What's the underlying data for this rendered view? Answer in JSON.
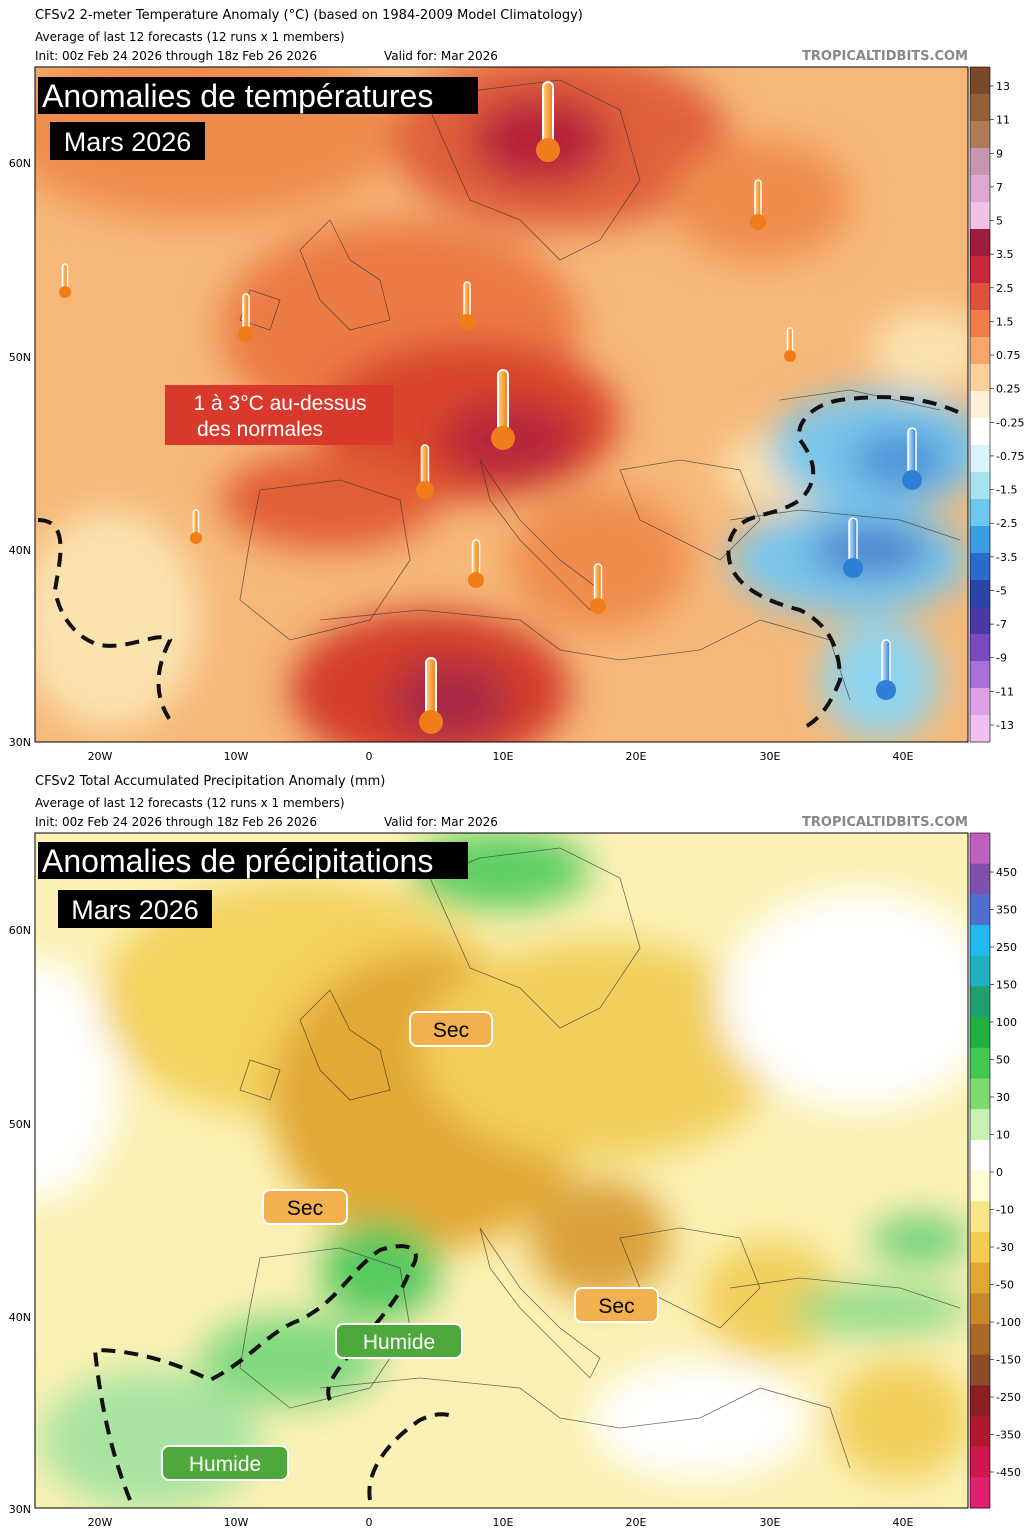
{
  "panels": [
    {
      "title": "CFSv2 2-meter Temperature Anomaly (°C) (based on 1984-2009 Model Climatology)",
      "subtitle": "Average of last 12 forecasts (12 runs x 1 members)",
      "init": "Init: 00z Feb 24 2026 through 18z Feb 26 2026",
      "valid": "Valid for: Mar 2026",
      "credit": "TROPICALTIDBITS.COM",
      "overlay_title": "Anomalies de températures",
      "overlay_date": "Mars 2026",
      "annotations": [
        "1 à 3°C au-dessus",
        "des normales"
      ],
      "colorbar_labels": [
        "13",
        "11",
        "9",
        "7",
        "5",
        "3.5",
        "2.5",
        "1.5",
        "0.75",
        "0.25",
        "-0.25",
        "-0.75",
        "-1.5",
        "-2.5",
        "-3.5",
        "-5",
        "-7",
        "-9",
        "-11",
        "-13"
      ],
      "lon_labels": [
        "20W",
        "10W",
        "0",
        "10E",
        "20E",
        "30E",
        "40E"
      ],
      "lat_labels": [
        "60N",
        "50N",
        "40N",
        "30N"
      ]
    },
    {
      "title": "CFSv2 Total Accumulated Precipitation Anomaly (mm)",
      "subtitle": "Average of last 12 forecasts (12 runs x 1 members)",
      "init": "Init: 00z Feb 24 2026 through 18z Feb 26 2026",
      "valid": "Valid for: Mar 2026",
      "credit": "TROPICALTIDBITS.COM",
      "overlay_title": "Anomalies de précipitations",
      "overlay_date": "Mars 2026",
      "annotations": [
        "Sec",
        "Sec",
        "Sec",
        "Humide",
        "Humide"
      ],
      "colorbar_labels": [
        "450",
        "350",
        "250",
        "150",
        "100",
        "50",
        "30",
        "10",
        "0",
        "-10",
        "-30",
        "-50",
        "-100",
        "-150",
        "-250",
        "-350",
        "-450"
      ],
      "lon_labels": [
        "20W",
        "10W",
        "0",
        "10E",
        "20E",
        "30E",
        "40E"
      ],
      "lat_labels": [
        "60N",
        "50N",
        "40N",
        "30N"
      ]
    }
  ]
}
